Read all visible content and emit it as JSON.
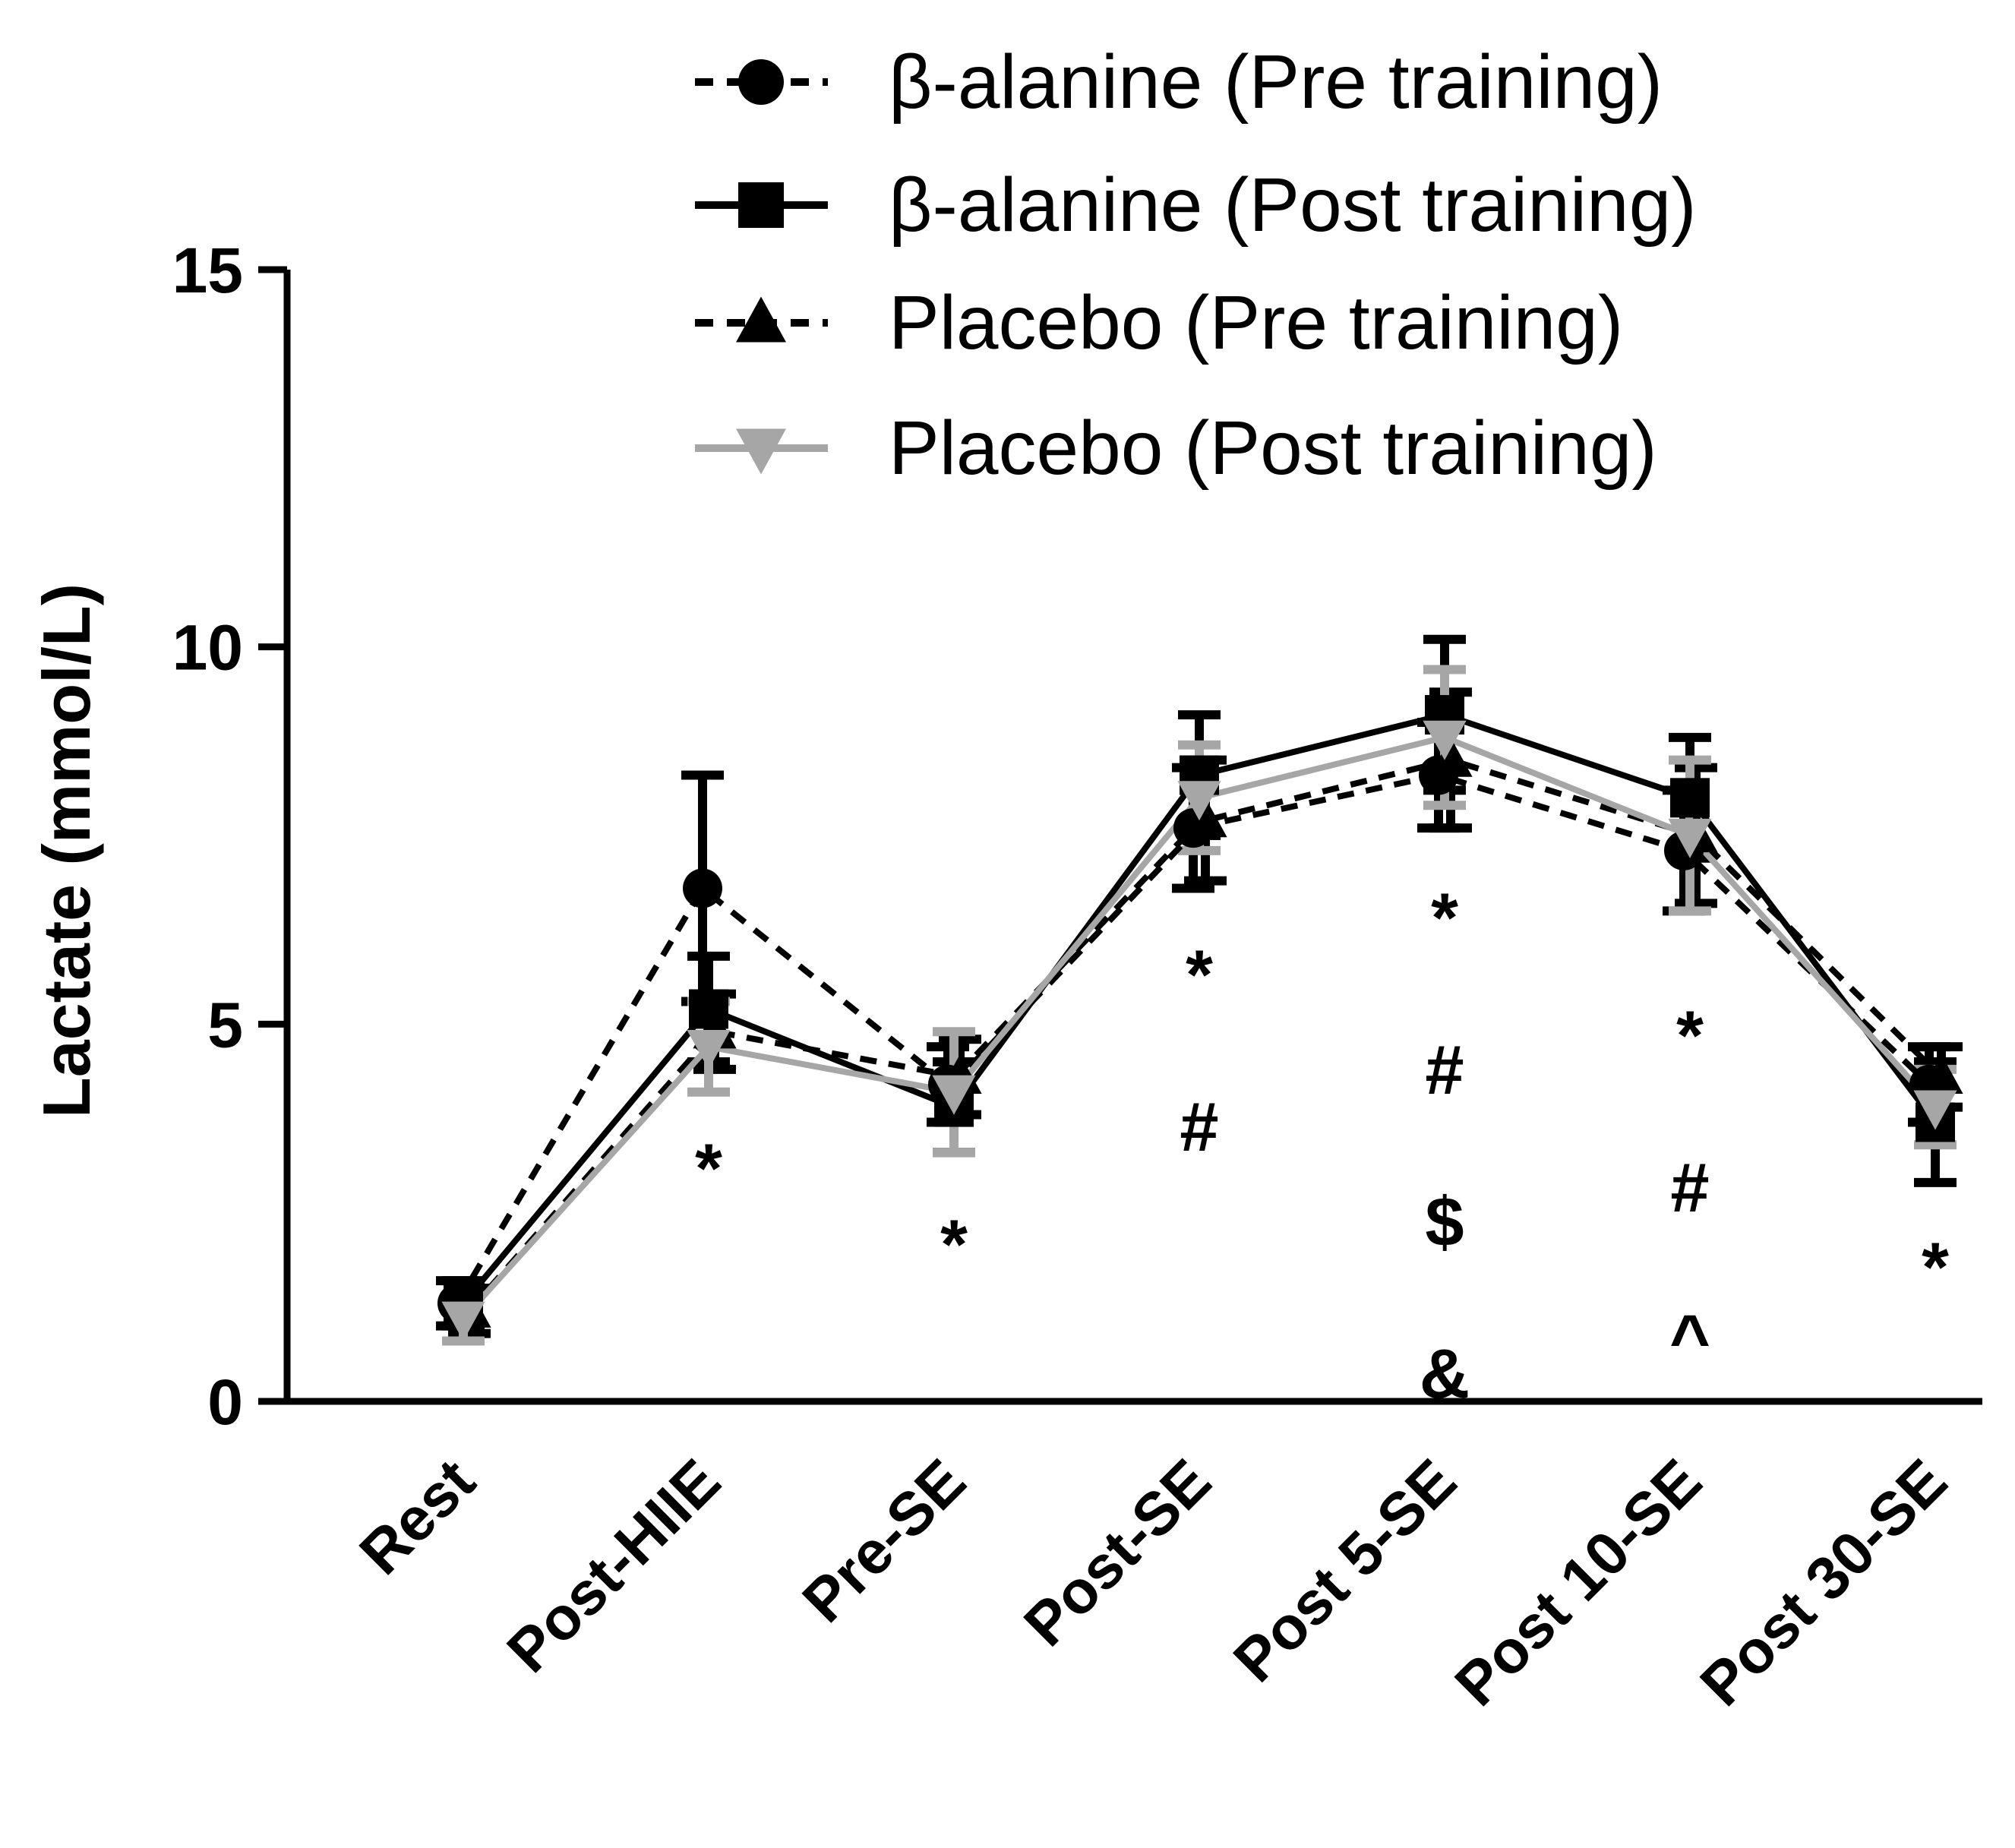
{
  "chart_data": {
    "type": "line",
    "title": "",
    "xlabel": "",
    "ylabel": "Lactate (mmol/L)",
    "ylim": [
      0,
      15
    ],
    "yticks": [
      0,
      5,
      10,
      15
    ],
    "grid": false,
    "legend_position": "top",
    "categories": [
      "Rest",
      "Post-HIIE",
      "Pre-SE",
      "Post-SE",
      "Post 5-SE",
      "Post 10-SE",
      "Post 30-SE"
    ],
    "series": [
      {
        "name": "β-alanine (Pre training)",
        "color": "#000000",
        "line_style": "dashed",
        "marker": "circle",
        "values": [
          1.3,
          6.8,
          4.2,
          7.6,
          8.3,
          7.3,
          4.2
        ],
        "errors": [
          0.3,
          1.5,
          0.5,
          0.8,
          0.7,
          0.8,
          0.5
        ]
      },
      {
        "name": "β-alanine (Post training)",
        "color": "#000000",
        "line_style": "solid",
        "marker": "square",
        "values": [
          1.3,
          5.2,
          3.9,
          8.3,
          9.1,
          8.0,
          3.7
        ],
        "errors": [
          0.3,
          0.7,
          0.6,
          0.8,
          1.0,
          0.8,
          0.8
        ]
      },
      {
        "name": "Placebo (Pre training)",
        "color": "#000000",
        "line_style": "dashed",
        "marker": "triangle-up",
        "values": [
          1.2,
          4.9,
          4.3,
          7.7,
          8.5,
          7.5,
          4.3
        ],
        "errors": [
          0.3,
          0.5,
          0.5,
          0.8,
          0.9,
          0.9,
          0.4
        ]
      },
      {
        "name": "Placebo (Post training)",
        "color": "#a6a6a6",
        "line_style": "solid",
        "marker": "triangle-down",
        "values": [
          1.1,
          4.7,
          4.1,
          8.0,
          8.8,
          7.5,
          3.9
        ],
        "errors": [
          0.3,
          0.6,
          0.8,
          0.7,
          0.9,
          1.0,
          0.5
        ]
      }
    ],
    "annotations": [
      {
        "category": "Post-HIIE",
        "symbols": [
          "*"
        ]
      },
      {
        "category": "Pre-SE",
        "symbols": [
          "*"
        ]
      },
      {
        "category": "Post-SE",
        "symbols": [
          "*",
          "#"
        ]
      },
      {
        "category": "Post 5-SE",
        "symbols": [
          "*",
          "#",
          "$",
          "&"
        ]
      },
      {
        "category": "Post 10-SE",
        "symbols": [
          "*",
          "#",
          "^"
        ]
      },
      {
        "category": "Post 30-SE",
        "symbols": [
          "*"
        ]
      }
    ]
  }
}
